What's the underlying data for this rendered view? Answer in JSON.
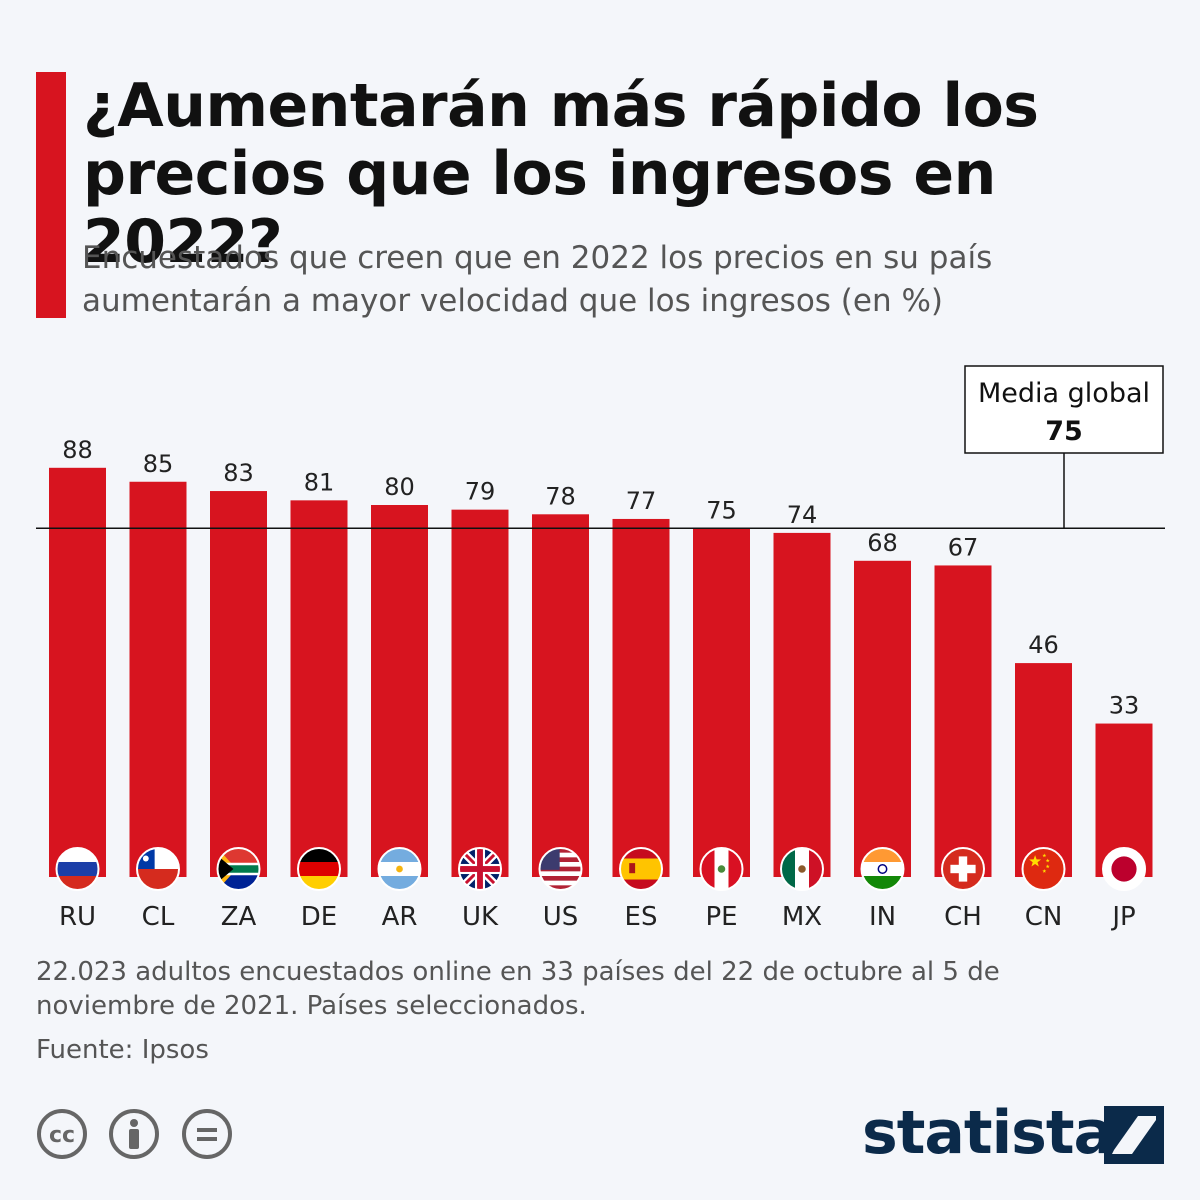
{
  "header": {
    "title": "¿Aumentarán más rápido los precios que los ingresos en 2022?",
    "subtitle": "Encuestados que creen que en 2022 los precios en su país aumentarán a mayor velocidad que los ingresos (en %)"
  },
  "chart_data": {
    "type": "bar",
    "categories": [
      "RU",
      "CL",
      "ZA",
      "DE",
      "AR",
      "UK",
      "US",
      "ES",
      "PE",
      "MX",
      "IN",
      "CH",
      "CN",
      "JP"
    ],
    "values": [
      88,
      85,
      83,
      81,
      80,
      79,
      78,
      77,
      75,
      74,
      68,
      67,
      46,
      33
    ],
    "ylim": [
      0,
      100
    ],
    "bar_color": "#d7141f",
    "reference_line": {
      "label": "Media global",
      "value": 75
    },
    "category_icons": [
      "flag-russia-icon",
      "flag-chile-icon",
      "flag-south-africa-icon",
      "flag-germany-icon",
      "flag-argentina-icon",
      "flag-uk-icon",
      "flag-usa-icon",
      "flag-spain-icon",
      "flag-peru-icon",
      "flag-mexico-icon",
      "flag-india-icon",
      "flag-switzerland-icon",
      "flag-china-icon",
      "flag-japan-icon"
    ]
  },
  "footer": {
    "notes": "22.023 adultos encuestados online en 33 países del 22 de octubre al 5 de noviembre de 2021. Países seleccionados.",
    "source": "Fuente: Ipsos",
    "license_icons": [
      "creative-commons-icon",
      "attribution-icon",
      "no-derivatives-icon"
    ],
    "brand": "statista"
  },
  "colors": {
    "accent": "#d7141f",
    "brand": "#0b2a4a",
    "background": "#f4f6fa"
  }
}
